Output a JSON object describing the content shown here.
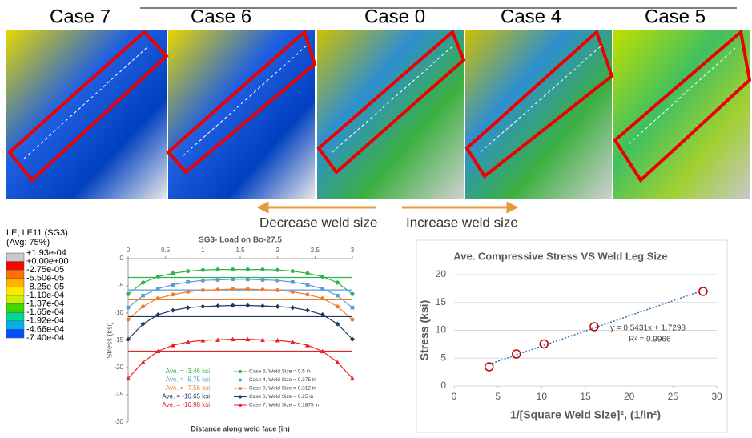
{
  "figure": {
    "cases": [
      "Case 7",
      "Case 6",
      "Case 0",
      "Case 4",
      "Case 5"
    ],
    "arrow_left": "Decrease weld size",
    "arrow_right": "Increase weld size",
    "contour_legend": {
      "title": "LE, LE11 (SG3)",
      "subtitle": "(Avg: 75%)",
      "labels": [
        "+1.93e-04",
        "+0.00e+00",
        "-2.75e-05",
        "-5.50e-05",
        "-8.25e-05",
        "-1.10e-04",
        "-1.37e-04",
        "-1.65e-04",
        "-1.92e-04",
        "-4.66e-04",
        "-7.40e-04"
      ],
      "colors": [
        "#c8c8c8",
        "#ff0000",
        "#ff7000",
        "#ffb000",
        "#ffe800",
        "#c8f000",
        "#40d800",
        "#00d890",
        "#00b0f0",
        "#0050ff"
      ]
    }
  },
  "chart_data": [
    {
      "type": "line",
      "title": "SG3- Load on Bo-27.5",
      "x_label": "Distance along weld face (in)",
      "y_label": "Stress (ksi)",
      "x": [
        0,
        0.2,
        0.4,
        0.6,
        0.8,
        1,
        1.2,
        1.4,
        1.6,
        1.8,
        2,
        2.2,
        2.4,
        2.6,
        2.8,
        3
      ],
      "xlim": [
        0,
        3
      ],
      "xticks": [
        0,
        0.5,
        1,
        1.5,
        2,
        2.5,
        3
      ],
      "ylim": [
        -30,
        0
      ],
      "yticks": [
        0,
        -5,
        -10,
        -15,
        -20,
        -25,
        -30
      ],
      "series": [
        {
          "name": "Case 5, Weld Size = 0.5 in",
          "color": "#2eb34a",
          "marker": "circle",
          "average": -3.46,
          "average_label": "Ave. = -3.46 ksi",
          "values": [
            -6.5,
            -4.4,
            -3.3,
            -2.7,
            -2.3,
            -2.1,
            -2.0,
            -2.0,
            -2.0,
            -2.0,
            -2.1,
            -2.3,
            -2.7,
            -3.3,
            -4.4,
            -6.5
          ]
        },
        {
          "name": "Case 4, Weld Size = 0.375 in",
          "color": "#5b9bd5",
          "marker": "square",
          "average": -5.75,
          "average_label": "Ave. = -5.75 ksi",
          "values": [
            -9.0,
            -6.8,
            -5.5,
            -4.8,
            -4.3,
            -4.0,
            -3.9,
            -3.8,
            -3.8,
            -3.9,
            -4.0,
            -4.3,
            -4.8,
            -5.5,
            -6.8,
            -9.0
          ]
        },
        {
          "name": "Case 0, Weld Size = 0.312 in",
          "color": "#ed7d31",
          "marker": "circle",
          "average": -7.56,
          "average_label": "Ave. = -7.56 ksi",
          "values": [
            -11.2,
            -8.8,
            -7.3,
            -6.6,
            -6.1,
            -5.8,
            -5.7,
            -5.6,
            -5.6,
            -5.7,
            -5.8,
            -6.1,
            -6.6,
            -7.3,
            -8.8,
            -11.2
          ]
        },
        {
          "name": "Case 6, Weld Size = 0.25 in",
          "color": "#1f3864",
          "marker": "diamond",
          "average": -10.65,
          "average_label": "Ave. = -10.65 ksi",
          "values": [
            -14.8,
            -12.0,
            -10.3,
            -9.5,
            -9.0,
            -8.8,
            -8.7,
            -8.6,
            -8.6,
            -8.7,
            -8.8,
            -9.0,
            -9.5,
            -10.3,
            -12.0,
            -14.8
          ]
        },
        {
          "name": "Case 7, Weld Size = 0.1875 in",
          "color": "#e8202a",
          "marker": "triangle",
          "average": -16.98,
          "average_label": "Ave. = -16.98 ksi",
          "values": [
            -22.0,
            -19.0,
            -17.0,
            -15.9,
            -15.3,
            -15.0,
            -14.9,
            -14.8,
            -14.8,
            -14.9,
            -15.0,
            -15.3,
            -15.9,
            -17.0,
            -19.0,
            -22.0
          ]
        }
      ]
    },
    {
      "type": "scatter",
      "title": "Ave. Compressive Stress VS Weld Leg Size",
      "x_label": "1/[Square Weld Size]², (1/in²)",
      "y_label": "Stress (ksi)",
      "xlim": [
        0,
        30
      ],
      "xticks": [
        0,
        5,
        10,
        15,
        20,
        25,
        30
      ],
      "ylim": [
        0,
        20
      ],
      "yticks": [
        0,
        5,
        10,
        15,
        20
      ],
      "grid": true,
      "series": [
        {
          "color": "#c00000",
          "x": [
            4,
            7.11,
            10.27,
            16,
            28.44
          ],
          "values": [
            3.46,
            5.75,
            7.56,
            10.65,
            16.98
          ]
        }
      ],
      "trendline": {
        "slope": 0.5431,
        "intercept": 1.7298,
        "color": "#2e75b6",
        "equation": "y = 0.5431x + 1.7298",
        "r2_label": "R² = 0.9966"
      }
    }
  ]
}
